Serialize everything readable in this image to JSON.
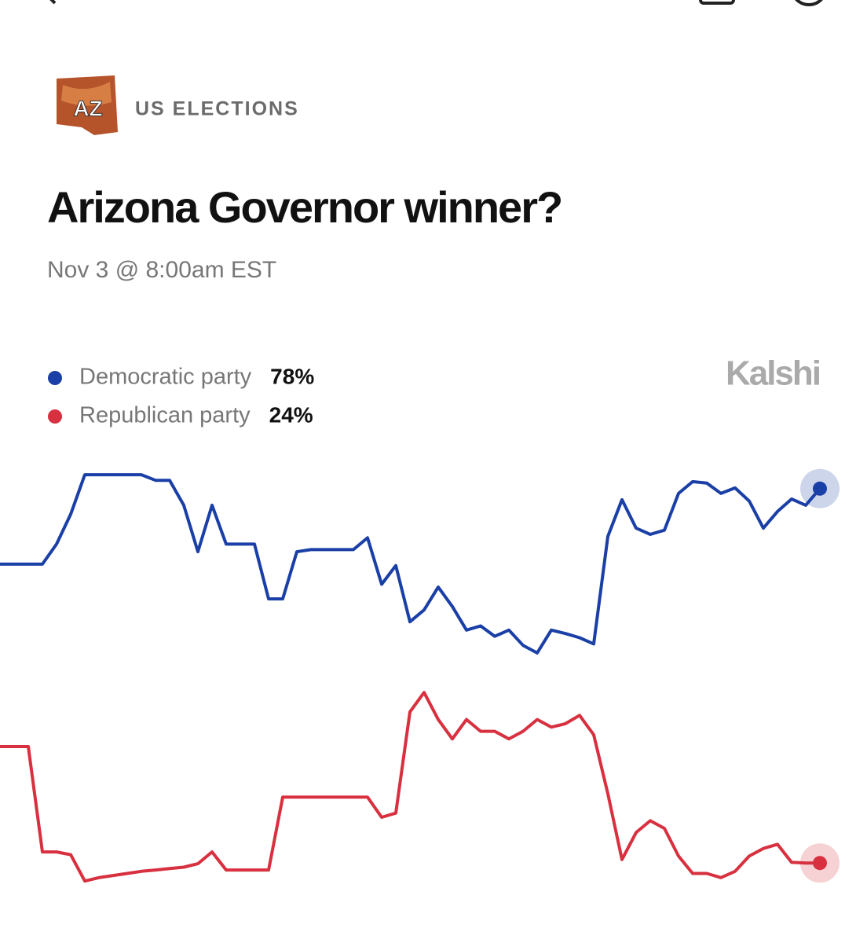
{
  "header": {
    "badge": "AZ",
    "category": "US ELECTIONS",
    "title": "Arizona Governor winner?",
    "date": "Nov 3 @ 8:00am EST",
    "brand": "Kalshi"
  },
  "chart_data": {
    "type": "line",
    "ylim": [
      17,
      85
    ],
    "series": [
      {
        "name": "Democratic party",
        "color": "#1a3fa6",
        "current_label": "78%",
        "values": [
          67.1,
          67.1,
          67.1,
          67.1,
          70.0,
          74.3,
          80.0,
          80.0,
          80.0,
          80.0,
          80.0,
          79.2,
          79.2,
          75.6,
          68.9,
          75.6,
          70.0,
          70.0,
          70.0,
          62.1,
          62.1,
          68.9,
          69.2,
          69.2,
          69.2,
          69.2,
          70.9,
          64.2,
          66.9,
          58.8,
          60.5,
          63.8,
          61.0,
          57.6,
          58.2,
          56.7,
          57.6,
          55.4,
          54.3,
          57.6,
          57.1,
          56.5,
          55.6,
          71.1,
          76.4,
          72.3,
          71.4,
          72.0,
          77.3,
          79.0,
          78.8,
          77.3,
          78.1,
          76.2,
          72.3,
          74.7,
          76.5,
          75.6,
          78
        ]
      },
      {
        "name": "Republican party",
        "color": "#d8303f",
        "current_label": "24%",
        "values": [
          40.8,
          40.8,
          40.8,
          25.6,
          25.6,
          25.2,
          21.4,
          21.9,
          22.2,
          22.5,
          22.8,
          23.0,
          23.2,
          23.4,
          23.9,
          25.6,
          23.0,
          23.0,
          23.0,
          23.0,
          33.5,
          33.5,
          33.5,
          33.5,
          33.5,
          33.5,
          33.5,
          30.6,
          31.2,
          45.8,
          48.6,
          44.7,
          41.9,
          44.7,
          43.0,
          43.0,
          41.9,
          43.0,
          44.7,
          43.6,
          44.1,
          45.3,
          42.5,
          34.0,
          24.5,
          28.4,
          30.1,
          29.0,
          25.0,
          22.5,
          22.5,
          21.9,
          22.8,
          25.0,
          26.1,
          26.7,
          24.1,
          24.0,
          24
        ]
      }
    ]
  }
}
